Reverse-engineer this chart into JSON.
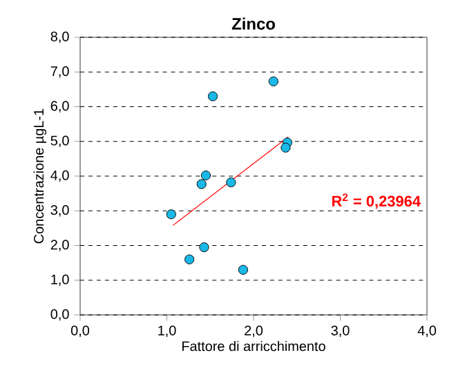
{
  "chart_data": {
    "type": "scatter",
    "title": "Zinco",
    "xlabel": "Fattore di arricchimento",
    "ylabel": "Concentrazione µgL-1",
    "xlim": [
      0,
      4
    ],
    "ylim": [
      0,
      8
    ],
    "xticks": [
      {
        "value": 0,
        "label": "0,0"
      },
      {
        "value": 1,
        "label": "1,0"
      },
      {
        "value": 2,
        "label": "2,0"
      },
      {
        "value": 3,
        "label": "3,0"
      },
      {
        "value": 4,
        "label": "4,0"
      }
    ],
    "yticks": [
      {
        "value": 0,
        "label": "0,0"
      },
      {
        "value": 1,
        "label": "1,0"
      },
      {
        "value": 2,
        "label": "2,0"
      },
      {
        "value": 3,
        "label": "3,0"
      },
      {
        "value": 4,
        "label": "4,0"
      },
      {
        "value": 5,
        "label": "5,0"
      },
      {
        "value": 6,
        "label": "6,0"
      },
      {
        "value": 7,
        "label": "7,0"
      },
      {
        "value": 8,
        "label": "8,0"
      }
    ],
    "grid": "y",
    "series": [
      {
        "marker": "circle",
        "color": "#1ab8e6",
        "x": [
          1.05,
          1.26,
          1.43,
          1.88,
          1.4,
          1.45,
          1.74,
          1.53,
          2.23,
          2.39,
          2.37
        ],
        "values": [
          2.9,
          1.6,
          1.95,
          1.3,
          3.77,
          4.02,
          3.82,
          6.3,
          6.73,
          4.97,
          4.82
        ]
      },
      {
        "type": "line",
        "color": "#ff0000",
        "x": [
          1.07,
          2.4
        ],
        "values": [
          2.58,
          5.13
        ]
      }
    ],
    "annotations": [
      "R$^{2}$ = 0,23964"
    ]
  }
}
